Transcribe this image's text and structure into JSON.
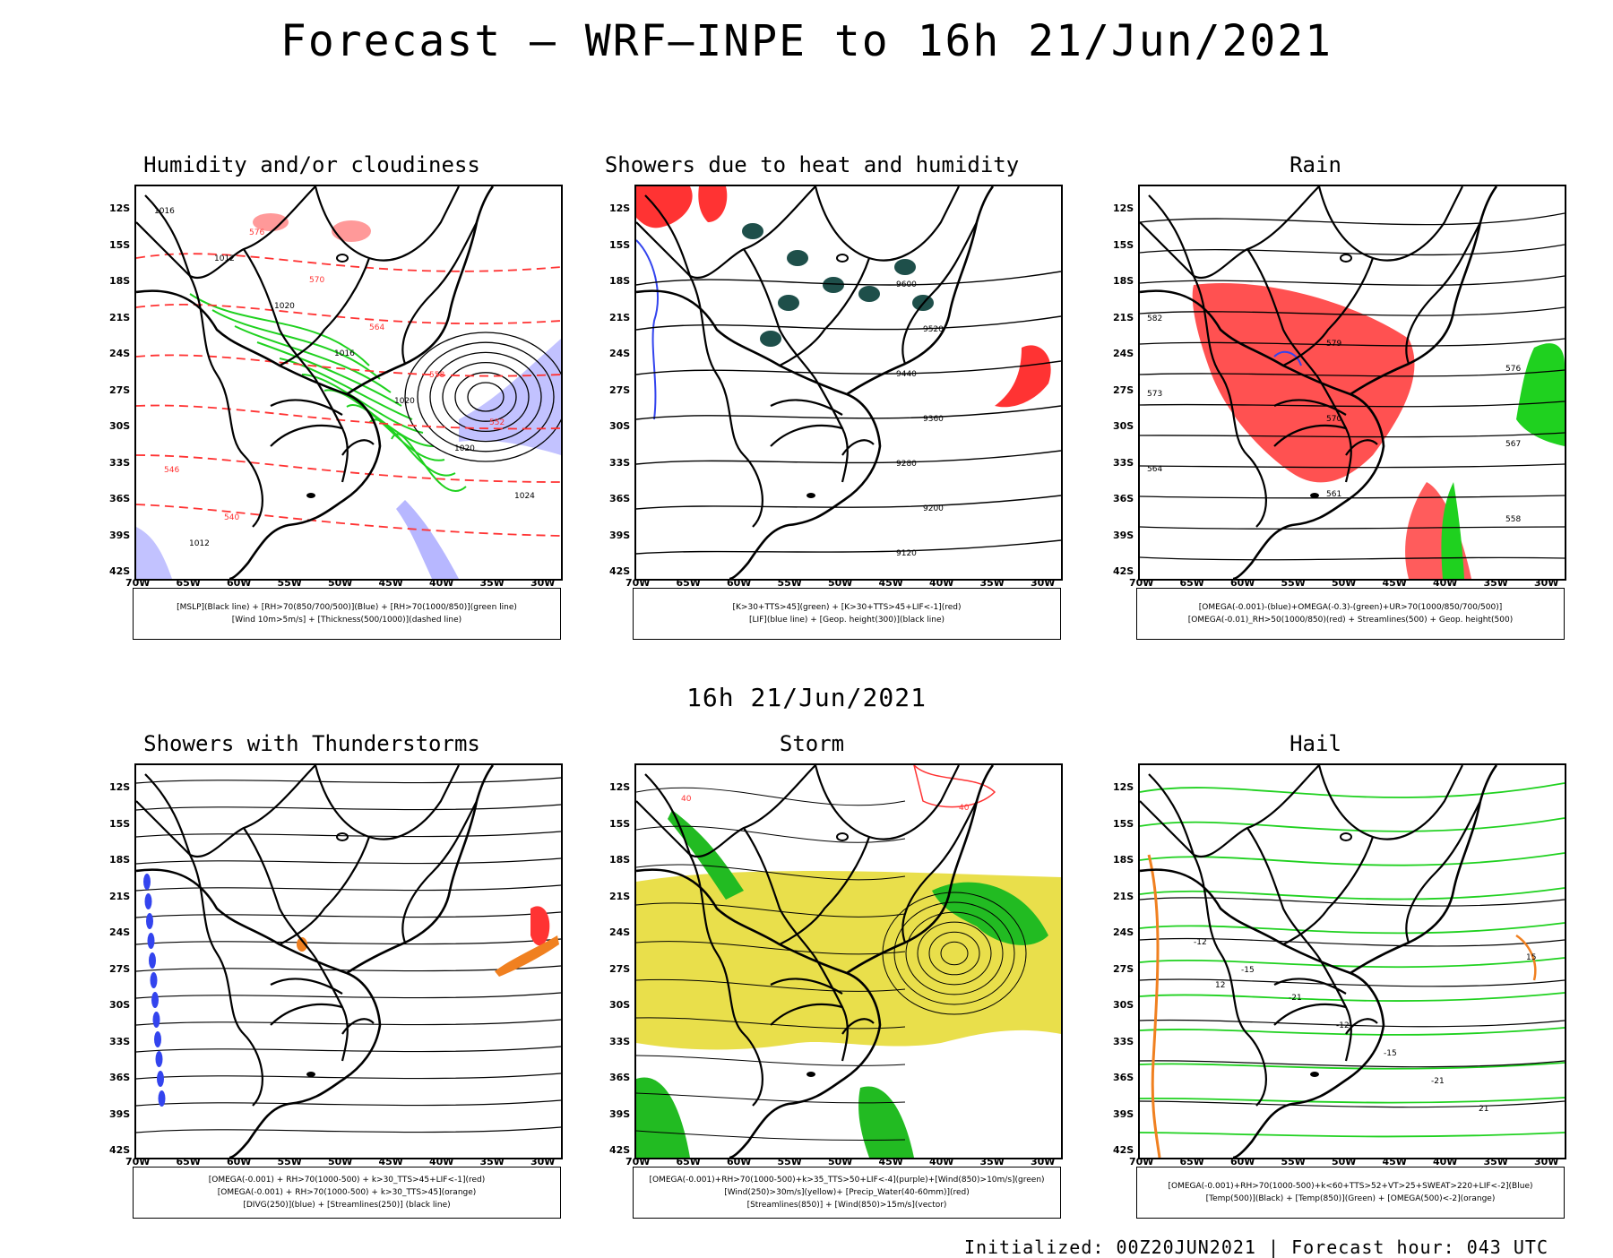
{
  "title": "Forecast — WRF–INPE to 16h 21/Jun/2021",
  "mid_title": "16h 21/Jun/2021",
  "footer": "Initialized: 00Z20JUN2021 | Forecast hour: 043 UTC",
  "lat_labels": [
    "12S",
    "15S",
    "18S",
    "21S",
    "24S",
    "27S",
    "30S",
    "33S",
    "36S",
    "39S",
    "42S"
  ],
  "lon_labels": [
    "70W",
    "65W",
    "60W",
    "55W",
    "50W",
    "45W",
    "40W",
    "35W",
    "30W"
  ],
  "colors": {
    "black": "#000000",
    "red": "#ff3333",
    "green": "#1fd11f",
    "blue": "#3344ee",
    "purple": "#9999ff",
    "yellow": "#e5d92c",
    "orange": "#f08020",
    "darkgreen": "#1e4f4a",
    "stormgreen": "#22bb22"
  },
  "panels": [
    {
      "id": "humidity",
      "title": "Humidity and/or cloudiness",
      "legend": [
        "[MSLP](Black line) + [RH>70(850/700/500)](Blue) + [RH>70(1000/850)](green line)",
        "[Wind 10m>5m/s] + [Thickness(500/1000)](dashed line)"
      ],
      "labels": [
        "1016",
        "1012",
        "1020",
        "1016",
        "1020",
        "1020",
        "1024",
        "1012",
        "576",
        "570",
        "564",
        "558",
        "552",
        "546",
        "540"
      ]
    },
    {
      "id": "showers",
      "title": "Showers due to heat and humidity",
      "legend": [
        "[K>30+TTS>45](green) + [K>30+TTS>45+LIF<-1](red)",
        "[LIF](blue line) + [Geop. height(300)](black line)"
      ],
      "labels": [
        "9600",
        "9520",
        "9440",
        "9360",
        "9280",
        "9200",
        "9120"
      ]
    },
    {
      "id": "rain",
      "title": "Rain",
      "legend": [
        "[OMEGA(-0.001)-(blue)+OMEGA(-0.3)-(green)+UR>70(1000/850/700/500)]",
        "[OMEGA(-0.01)_RH>50(1000/850)(red) + Streamlines(500) + Geop. height(500)"
      ],
      "labels": [
        "582",
        "579",
        "576",
        "573",
        "570",
        "567",
        "564",
        "561",
        "558"
      ]
    },
    {
      "id": "thunder",
      "title": "Showers with Thunderstorms",
      "legend": [
        "[OMEGA(-0.001) + RH>70(1000-500) + k>30_TTS>45+LIF<-1](red)",
        "[OMEGA(-0.001) + RH>70(1000-500) + k>30_TTS>45](orange)",
        "[DIVG(250)](blue) + [Streamlines(250)] (black line)"
      ],
      "labels": []
    },
    {
      "id": "storm",
      "title": "Storm",
      "legend": [
        "[OMEGA(-0.001)+RH>70(1000-500)+k>35_TTS>50+LIF<-4](purple)+[Wind(850)>10m/s](green)",
        "[Wind(250)>30m/s](yellow)+ [Precip_Water(40-60mm)](red)",
        "[Streamlines(850)] + [Wind(850)>15m/s](vector)"
      ],
      "labels": [
        "40",
        "40"
      ]
    },
    {
      "id": "hail",
      "title": "Hail",
      "legend": [
        "[OMEGA(-0.001)+RH>70(1000-500)+k<60+TTS>52+VT>25+SWEAT>220+LIF<-2](Blue)",
        "[Temp(500)](Black) + [Temp(850)](Green) + [OMEGA(500)<-2](orange)"
      ],
      "labels": [
        "-12",
        "-15",
        "-21",
        "-12",
        "-15",
        "-21",
        "21",
        "15",
        "12"
      ]
    }
  ]
}
